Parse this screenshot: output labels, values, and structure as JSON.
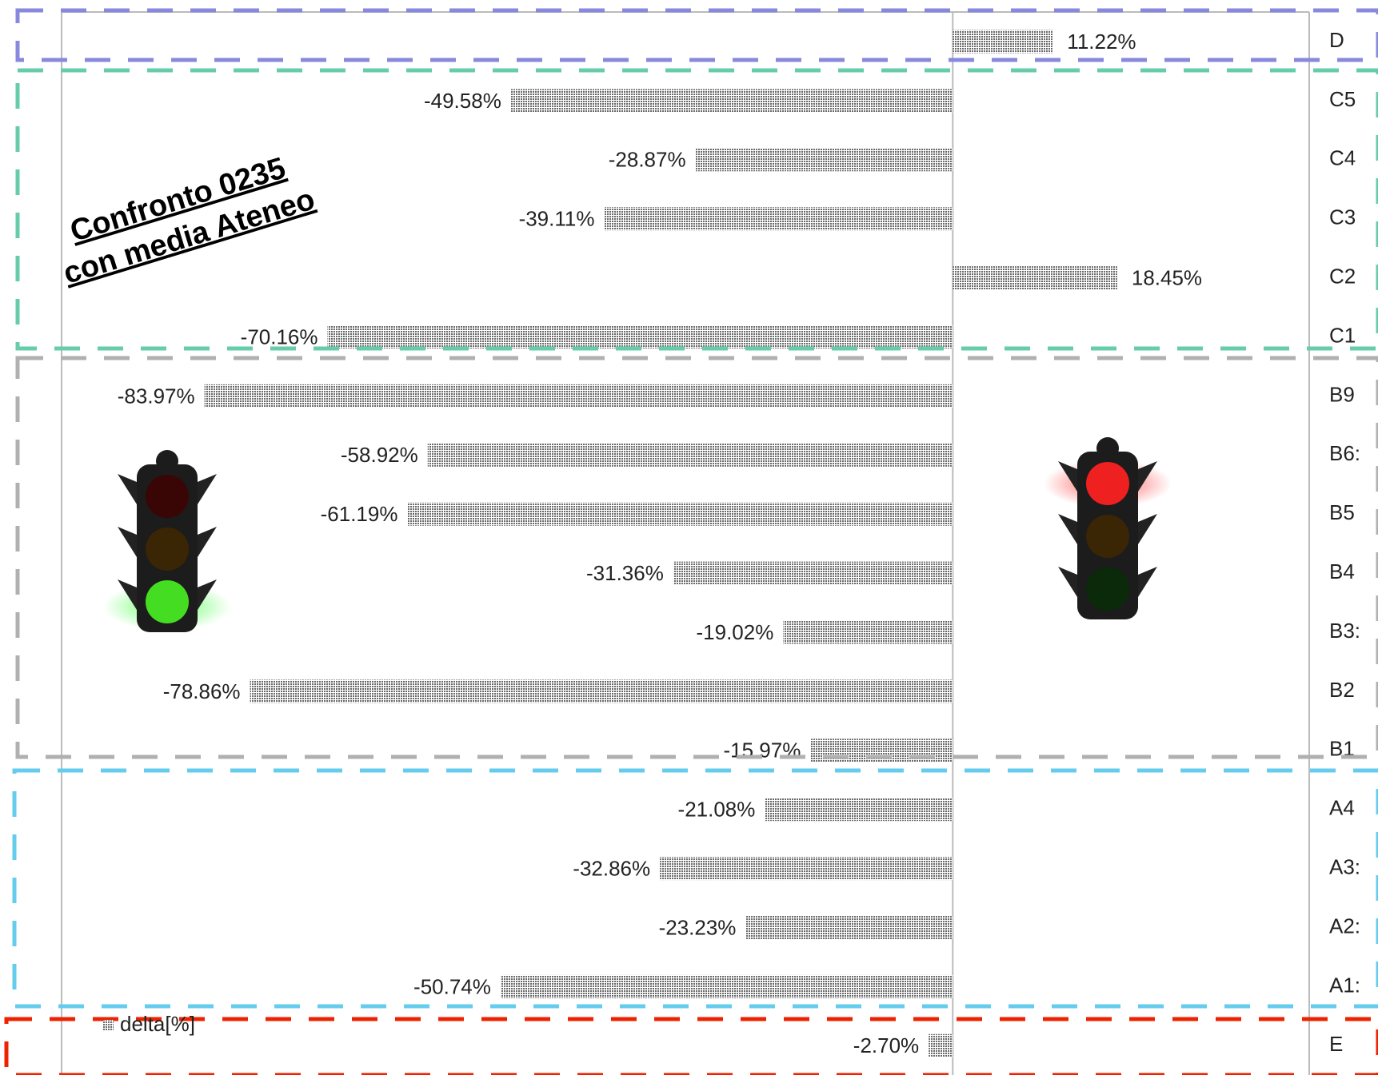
{
  "chart_data": {
    "type": "bar",
    "orientation": "horizontal",
    "annotation": [
      "Confronto 0235",
      "con media Ateneo"
    ],
    "categories": [
      "D",
      "C5",
      "C4",
      "C3",
      "C2",
      "C1",
      "B9",
      "B6:",
      "B5",
      "B4",
      "B3:",
      "B2",
      "B1",
      "A4",
      "A3:",
      "A2:",
      "A1:",
      "E"
    ],
    "series": [
      {
        "name": "delta[%]",
        "color": "#6a6a6a",
        "values": [
          11.22,
          -49.58,
          -28.87,
          -39.11,
          18.45,
          -70.16,
          -83.97,
          -58.92,
          -61.19,
          -31.36,
          -19.02,
          -78.86,
          -15.97,
          -21.08,
          -32.86,
          -23.23,
          -50.74,
          -2.7
        ],
        "value_labels": [
          "11.22%",
          "-49.58%",
          "-28.87%",
          "-39.11%",
          "18.45%",
          "-70.16%",
          "-83.97%",
          "-58.92%",
          "-61.19%",
          "-31.36%",
          "-19.02%",
          "-78.86%",
          "-15.97%",
          "-21.08%",
          "-32.86%",
          "-23.23%",
          "-50.74%",
          "-2.70%"
        ]
      }
    ],
    "xlim": [
      -100,
      40
    ]
  }
}
